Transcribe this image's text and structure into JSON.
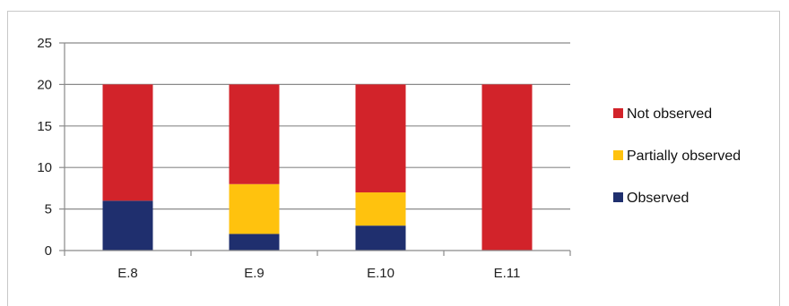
{
  "chart_data": {
    "type": "bar",
    "stacked": true,
    "categories": [
      "E.8",
      "E.9",
      "E.10",
      "E.11"
    ],
    "series": [
      {
        "name": "Observed",
        "values": [
          6,
          2,
          3,
          0
        ],
        "color": "#1f2f6e"
      },
      {
        "name": "Partially observed",
        "values": [
          0,
          6,
          4,
          0
        ],
        "color": "#ffc20e"
      },
      {
        "name": "Not observed",
        "values": [
          14,
          12,
          13,
          20
        ],
        "color": "#d2232a"
      }
    ],
    "legend_order": [
      "Not observed",
      "Partially observed",
      "Observed"
    ],
    "title": "",
    "xlabel": "",
    "ylabel": "",
    "ylim": [
      0,
      25
    ],
    "yticks": [
      0,
      5,
      10,
      15,
      20,
      25
    ],
    "grid": true,
    "legend_position": "right"
  }
}
